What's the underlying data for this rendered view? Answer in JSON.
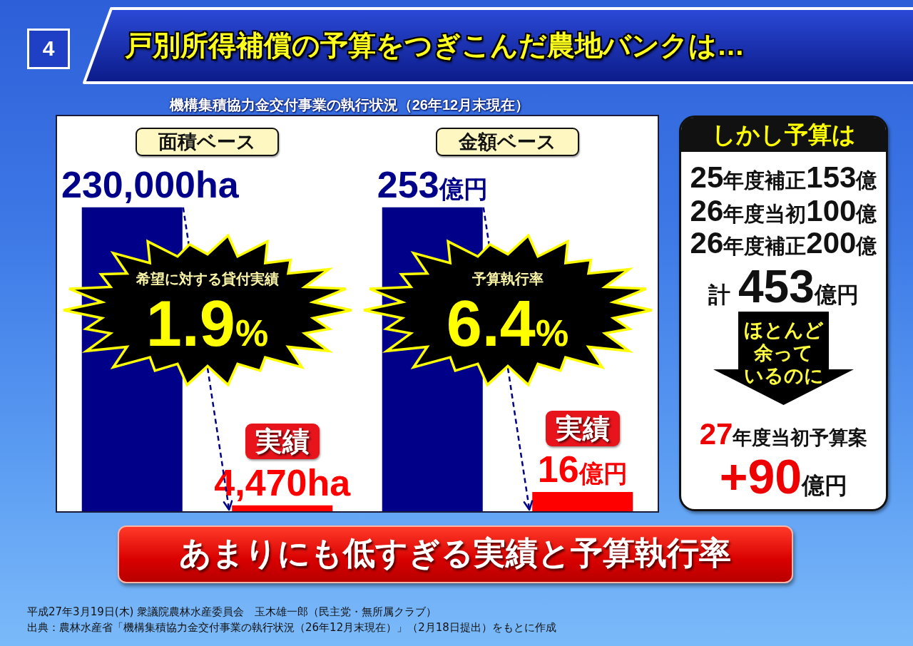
{
  "chart_data": [
    {
      "type": "other",
      "title": "戸別所得補償の予算をつぎこんだ農地バンクは…",
      "subtitle": "機構集積協力金交付事業の執行状況（26年12月末現在）",
      "annotations": [
        "4"
      ]
    },
    {
      "type": "bar",
      "title": "面積ベース",
      "categories": [
        null,
        "実績"
      ],
      "values": [
        230000,
        4470
      ],
      "colors": [
        "#000088",
        "#ff0000"
      ],
      "value_labels": [
        "230,000ha",
        "4,470ha"
      ],
      "tick_labels": "x",
      "annotations": [
        "希望に対する貸付実績",
        "1.9%"
      ]
    },
    {
      "type": "bar",
      "title": "金額ベース",
      "categories": [
        null,
        "実績"
      ],
      "values": [
        253,
        16
      ],
      "colors": [
        "#000088",
        "#ff0000"
      ],
      "value_labels": [
        "253億円",
        "16億円"
      ],
      "tick_labels": "x",
      "annotations": [
        "予算執行率",
        "6.4%"
      ]
    },
    {
      "type": "other",
      "title": "しかし予算は",
      "annotations": [
        "25年度補正153億",
        "26年度当初100億",
        "26年度補正200億",
        "計 453億円",
        "ほとんど",
        "余って",
        "いるのに",
        "27年度当初予算案",
        "+90億円"
      ]
    },
    {
      "type": "other",
      "title": "あまりにも低すぎる実績と予算執行率",
      "annotations": [
        "平成27年3月19日(木) 衆議院農林水産委員会　玉木雄一郎（民主党・無所属クラブ）",
        "出典：農林水産省「機構集積協力金交付事業の執行状況（26年12月末現在）」（2月18日提出）をもとに作成"
      ]
    }
  ]
}
